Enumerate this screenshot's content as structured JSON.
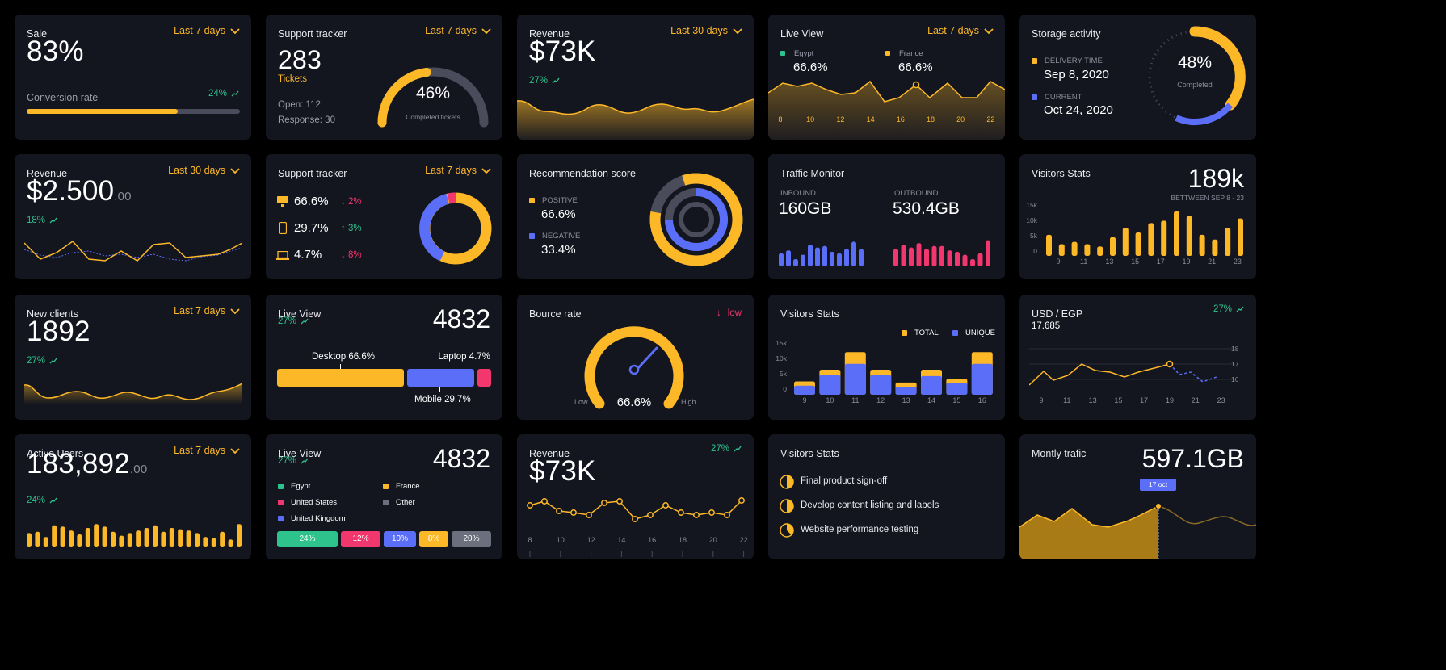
{
  "colors": {
    "bg": "#000000",
    "card": "#13151f",
    "yellow": "#fdb827",
    "blue": "#5b6ef8",
    "green": "#2ec28c",
    "pink": "#f2376f",
    "grey": "#4a4c5c"
  },
  "sale": {
    "title": "Sale",
    "range": "Last 7 days",
    "value": "83%",
    "label": "Conversion rate",
    "change": "24%",
    "progress": 0.71
  },
  "support1": {
    "title": "Support tracker",
    "range": "Last 7 days",
    "value": "283",
    "sub": "Tickets",
    "open": "Open: 112",
    "response": "Response: 30",
    "gauge_value": "46%",
    "gauge_label": "Completed tickets",
    "gauge_fraction": 0.46
  },
  "revenue1": {
    "title": "Revenue",
    "range": "Last 30 days",
    "value": "$73K",
    "change": "27%"
  },
  "liveview1": {
    "title": "Live View",
    "range": "Last 7 days",
    "country1": "Egypt",
    "value1": "66.6%",
    "country2": "France",
    "value2": "66.6%",
    "x_ticks": [
      "8",
      "10",
      "12",
      "14",
      "16",
      "18",
      "20",
      "22"
    ]
  },
  "storage": {
    "title": "Storage activity",
    "label1": "DELIVERY TIME",
    "date1": "Sep 8, 2020",
    "label2": "CURRENT",
    "date2": "Oct 24, 2020",
    "percent": "48%",
    "sub": "Completed"
  },
  "revenue2": {
    "title": "Revenue",
    "range": "Last 30 days",
    "value": "$2.500",
    "decimals": ".00",
    "change": "18%"
  },
  "support2": {
    "title": "Support tracker",
    "range": "Last 7 days",
    "rows": [
      {
        "value": "66.6%",
        "change": "2%",
        "icon": "monitor-icon"
      },
      {
        "value": "29.7%",
        "change": "3%",
        "icon": "phone-icon"
      },
      {
        "value": "4.7%",
        "change": "8%",
        "icon": "laptop-icon"
      }
    ]
  },
  "recommend": {
    "title": "Recommendation score",
    "pos_label": "POSITIVE",
    "pos_value": "66.6%",
    "neg_label": "NEGATIVE",
    "neg_value": "33.4%"
  },
  "traffic": {
    "title": "Traffic Monitor",
    "in_label": "INBOUND",
    "in_value": "160GB",
    "out_label": "OUTBOUND",
    "out_value": "530.4GB"
  },
  "visitors1": {
    "title": "Visitors Stats",
    "value": "189k",
    "sub": "BETTWEEN SEP 8 - 23",
    "y_ticks": [
      "15k",
      "10k",
      "5k",
      "0"
    ],
    "x_ticks": [
      "9",
      "11",
      "13",
      "15",
      "17",
      "19",
      "21",
      "23"
    ]
  },
  "clients": {
    "title": "New clients",
    "range": "Last 7 days",
    "value": "1892",
    "change": "27%"
  },
  "liveview2": {
    "title": "Live View",
    "value": "4832",
    "change": "27%",
    "desktop": "Desktop 66.6%",
    "laptop": "Laptop 4.7%",
    "mobile": "Mobile 29.7%"
  },
  "bounce": {
    "title": "Bource rate",
    "status": "low",
    "low": "Low",
    "high": "High",
    "value": "66.6%"
  },
  "visitors2": {
    "title": "Visitors Stats",
    "total": "TOTAL",
    "unique": "UNIQUE",
    "y_ticks": [
      "15k",
      "10k",
      "5k",
      "0"
    ],
    "x_ticks": [
      "9",
      "10",
      "11",
      "12",
      "13",
      "14",
      "15",
      "16"
    ]
  },
  "usd": {
    "title": "USD / EGP",
    "value": "17.685",
    "change": "27%",
    "y_ticks": [
      "18",
      "17",
      "16"
    ],
    "x_ticks": [
      "9",
      "11",
      "13",
      "15",
      "17",
      "19",
      "21",
      "23"
    ]
  },
  "active": {
    "title": "Active Users",
    "range": "Last 7 days",
    "value": "183,892",
    "decimals": ".00",
    "change": "24%"
  },
  "liveview3": {
    "title": "Live View",
    "value": "4832",
    "change": "27%",
    "legend": [
      {
        "label": "Egypt",
        "color": "#2ec28c"
      },
      {
        "label": "France",
        "color": "#fdb827"
      },
      {
        "label": "United States",
        "color": "#f2376f"
      },
      {
        "label": "Other",
        "color": "#6c6f7e"
      },
      {
        "label": "United Kingdom",
        "color": "#5b6ef8"
      }
    ],
    "pills": [
      "24%",
      "12%",
      "10%",
      "8%",
      "20%"
    ]
  },
  "revenue3": {
    "title": "Revenue",
    "value": "$73K",
    "change": "27%",
    "x_ticks": [
      "8",
      "10",
      "12",
      "14",
      "16",
      "18",
      "20",
      "22"
    ]
  },
  "tasks": {
    "title": "Visitors Stats",
    "items": [
      "Final product sign-off",
      "Develop content listing and labels",
      "Website performance testing"
    ]
  },
  "monthly": {
    "title": "Montly trafic",
    "value": "597.1GB",
    "tooltip": "17 oct"
  }
}
